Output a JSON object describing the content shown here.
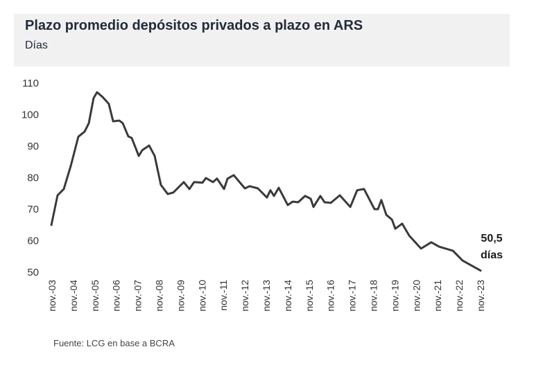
{
  "header": {
    "title": "Plazo promedio depósitos privados a plazo en ARS",
    "subtitle": "Días"
  },
  "source": "Fuente: LCG en base a BCRA",
  "colors": {
    "line": "#3a3a3a",
    "header_bg": "#f1f1f1"
  },
  "chart_data": {
    "type": "line",
    "title": "Plazo promedio depósitos privados a plazo en ARS",
    "ylabel": "Días",
    "ylim": [
      50,
      110
    ],
    "yticks": [
      50,
      60,
      70,
      80,
      90,
      100,
      110
    ],
    "xlim": [
      2003.83,
      2023.83
    ],
    "xtick_labels": [
      "nov.-03",
      "nov.-04",
      "nov.-05",
      "nov.-06",
      "nov.-07",
      "nov.-08",
      "nov.-09",
      "nov.-10",
      "nov.-11",
      "nov.-12",
      "nov.-13",
      "nov.-14",
      "nov.-15",
      "nov.-16",
      "nov.-17",
      "nov.-18",
      "nov.-19",
      "nov.-20",
      "nov.-21",
      "nov.-22",
      "nov.-23"
    ],
    "grid": false,
    "annotation": {
      "value": "50,5",
      "unit": "días"
    },
    "series": [
      {
        "name": "Plazo promedio",
        "x": [
          2003.8,
          2004.09,
          2004.38,
          2004.7,
          2005.06,
          2005.35,
          2005.55,
          2005.77,
          2005.93,
          2006.19,
          2006.48,
          2006.68,
          2006.97,
          2007.13,
          2007.39,
          2007.55,
          2007.88,
          2008.04,
          2008.36,
          2008.62,
          2008.91,
          2009.23,
          2009.49,
          2009.98,
          2010.24,
          2010.46,
          2010.85,
          2011.01,
          2011.34,
          2011.53,
          2011.86,
          2012.02,
          2012.31,
          2012.83,
          2013.05,
          2013.44,
          2013.86,
          2014.02,
          2014.19,
          2014.41,
          2014.83,
          2015.06,
          2015.32,
          2015.64,
          2015.9,
          2016.03,
          2016.35,
          2016.55,
          2016.84,
          2017.26,
          2017.75,
          2018.07,
          2018.39,
          2018.88,
          2019.04,
          2019.2,
          2019.43,
          2019.69,
          2019.85,
          2020.17,
          2020.5,
          2021.05,
          2021.53,
          2021.89,
          2022.54,
          2022.99,
          2023.83
        ],
        "values": [
          65.0,
          74.4,
          76.4,
          83.6,
          93.0,
          94.6,
          97.3,
          105.2,
          107.1,
          105.6,
          103.4,
          97.9,
          98.1,
          97.3,
          93.1,
          92.6,
          86.9,
          88.7,
          90.2,
          86.9,
          77.7,
          74.8,
          75.3,
          78.6,
          76.4,
          78.6,
          78.4,
          79.9,
          78.6,
          79.7,
          76.4,
          79.7,
          80.8,
          76.6,
          77.3,
          76.6,
          73.7,
          76.0,
          74.2,
          76.8,
          71.3,
          72.4,
          72.2,
          74.2,
          73.3,
          70.7,
          74.2,
          72.2,
          72.0,
          74.4,
          70.7,
          76.0,
          76.4,
          70.0,
          70.0,
          72.9,
          68.2,
          66.7,
          63.8,
          65.4,
          61.6,
          57.5,
          59.5,
          58.1,
          56.8,
          53.7,
          50.5
        ]
      }
    ]
  }
}
